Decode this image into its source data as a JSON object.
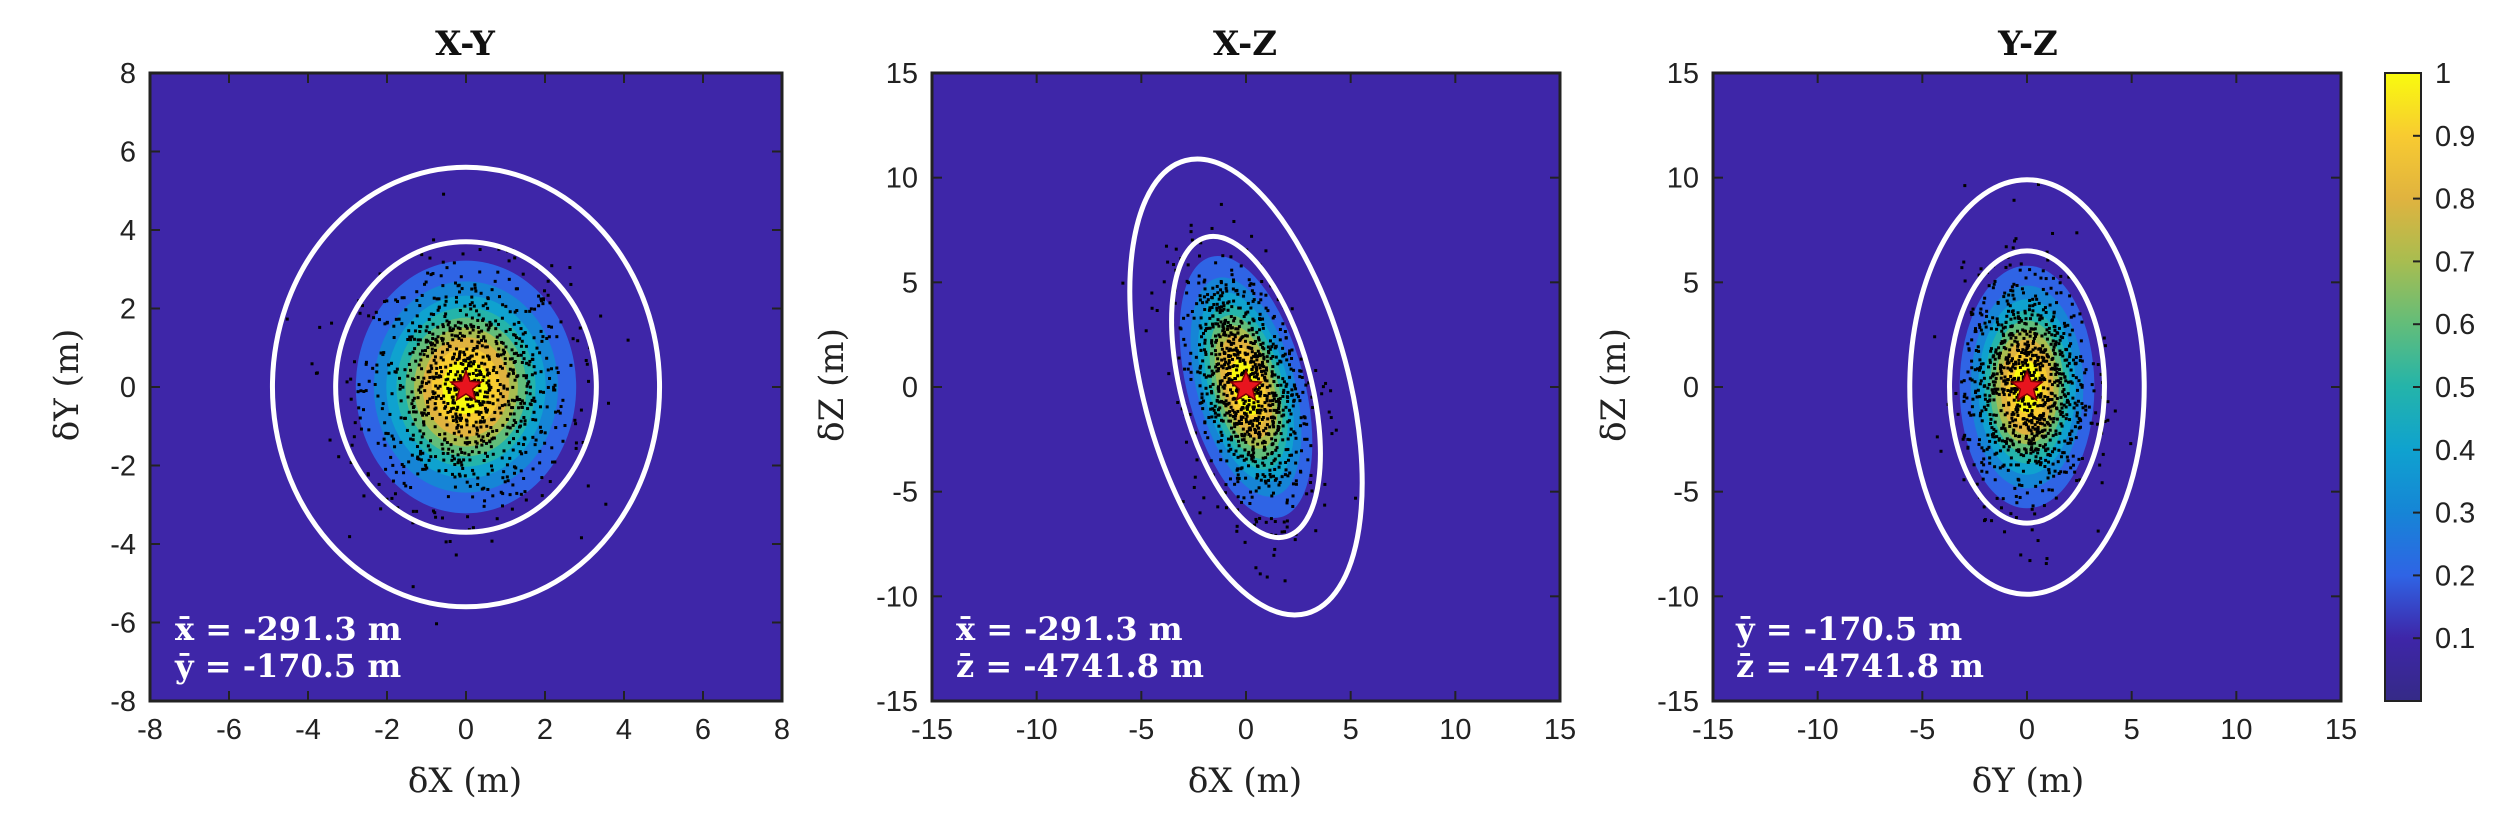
{
  "chart_data": [
    {
      "type": "contour",
      "title": "X-Y",
      "xlabel": "δX (m)",
      "ylabel": "δY (m)",
      "xlim": [
        -8,
        8
      ],
      "ylim": [
        -8,
        8
      ],
      "xticks": [
        -8,
        -6,
        -4,
        -2,
        0,
        2,
        4,
        6,
        8
      ],
      "yticks": [
        -8,
        -6,
        -4,
        -2,
        0,
        2,
        4,
        6,
        8
      ],
      "xtick_labels": [
        "-8",
        "-6",
        "-4",
        "-2",
        "0",
        "2",
        "4",
        "6",
        "8"
      ],
      "ytick_labels": [
        "-8",
        "-6",
        "-4",
        "-2",
        "0",
        "2",
        "4",
        "6",
        "8"
      ],
      "center": [
        0,
        0
      ],
      "ellipses": [
        {
          "rx": 3.3,
          "ry": 3.7,
          "angle_deg": 0
        },
        {
          "rx": 4.9,
          "ry": 5.6,
          "angle_deg": 0
        }
      ],
      "sigma": {
        "x": 1.3,
        "y": 1.5,
        "angle_deg": 0
      },
      "annotations": [
        "x̄ = -291.3 m",
        "ȳ = -170.5 m"
      ],
      "points_count": 1000,
      "marker": "red star at origin"
    },
    {
      "type": "contour",
      "title": "X-Z",
      "xlabel": "δX (m)",
      "ylabel": "δZ (m)",
      "xlim": [
        -15,
        15
      ],
      "ylim": [
        -15,
        15
      ],
      "xticks": [
        -15,
        -10,
        -5,
        0,
        5,
        10,
        15
      ],
      "yticks": [
        -15,
        -10,
        -5,
        0,
        5,
        10,
        15
      ],
      "xtick_labels": [
        "-15",
        "-10",
        "-5",
        "0",
        "5",
        "10",
        "15"
      ],
      "ytick_labels": [
        "-15",
        "-10",
        "-5",
        "0",
        "5",
        "10",
        "15"
      ],
      "center": [
        0,
        0
      ],
      "ellipses": [
        {
          "rx": 3.1,
          "ry": 7.4,
          "angle_deg": 15
        },
        {
          "rx": 4.9,
          "ry": 11.2,
          "angle_deg": 15
        }
      ],
      "sigma": {
        "x": 1.3,
        "y": 3.0,
        "angle_deg": 15
      },
      "annotations": [
        "x̄ = -291.3 m",
        "z̄ = -4741.8 m"
      ],
      "points_count": 1000,
      "marker": "red star at origin"
    },
    {
      "type": "contour",
      "title": "Y-Z",
      "xlabel": "δY (m)",
      "ylabel": "δZ (m)",
      "xlim": [
        -15,
        15
      ],
      "ylim": [
        -15,
        15
      ],
      "xticks": [
        -15,
        -10,
        -5,
        0,
        5,
        10,
        15
      ],
      "yticks": [
        -15,
        -10,
        -5,
        0,
        5,
        10,
        15
      ],
      "xtick_labels": [
        "-15",
        "-10",
        "-5",
        "0",
        "5",
        "10",
        "15"
      ],
      "ytick_labels": [
        "-15",
        "-10",
        "-5",
        "0",
        "5",
        "10",
        "15"
      ],
      "center": [
        0,
        0
      ],
      "ellipses": [
        {
          "rx": 3.7,
          "ry": 6.5,
          "angle_deg": 0
        },
        {
          "rx": 5.6,
          "ry": 9.9,
          "angle_deg": 0
        }
      ],
      "sigma": {
        "x": 1.5,
        "y": 2.7,
        "angle_deg": 0
      },
      "annotations": [
        "ȳ = -170.5 m",
        "z̄ = -4741.8 m"
      ],
      "points_count": 1000,
      "marker": "red star at origin"
    }
  ],
  "colorbar": {
    "range": [
      0,
      1
    ],
    "ticks": [
      0.1,
      0.2,
      0.3,
      0.4,
      0.5,
      0.6,
      0.7,
      0.8,
      0.9,
      1
    ],
    "tick_labels": [
      "0.1",
      "0.2",
      "0.3",
      "0.4",
      "0.5",
      "0.6",
      "0.7",
      "0.8",
      "0.9",
      "1"
    ],
    "colormap": "parula"
  },
  "colors": {
    "background_level": "#3e26a8",
    "ellipse": "#ffffff",
    "points": "#000000",
    "star": "#e8141e"
  }
}
